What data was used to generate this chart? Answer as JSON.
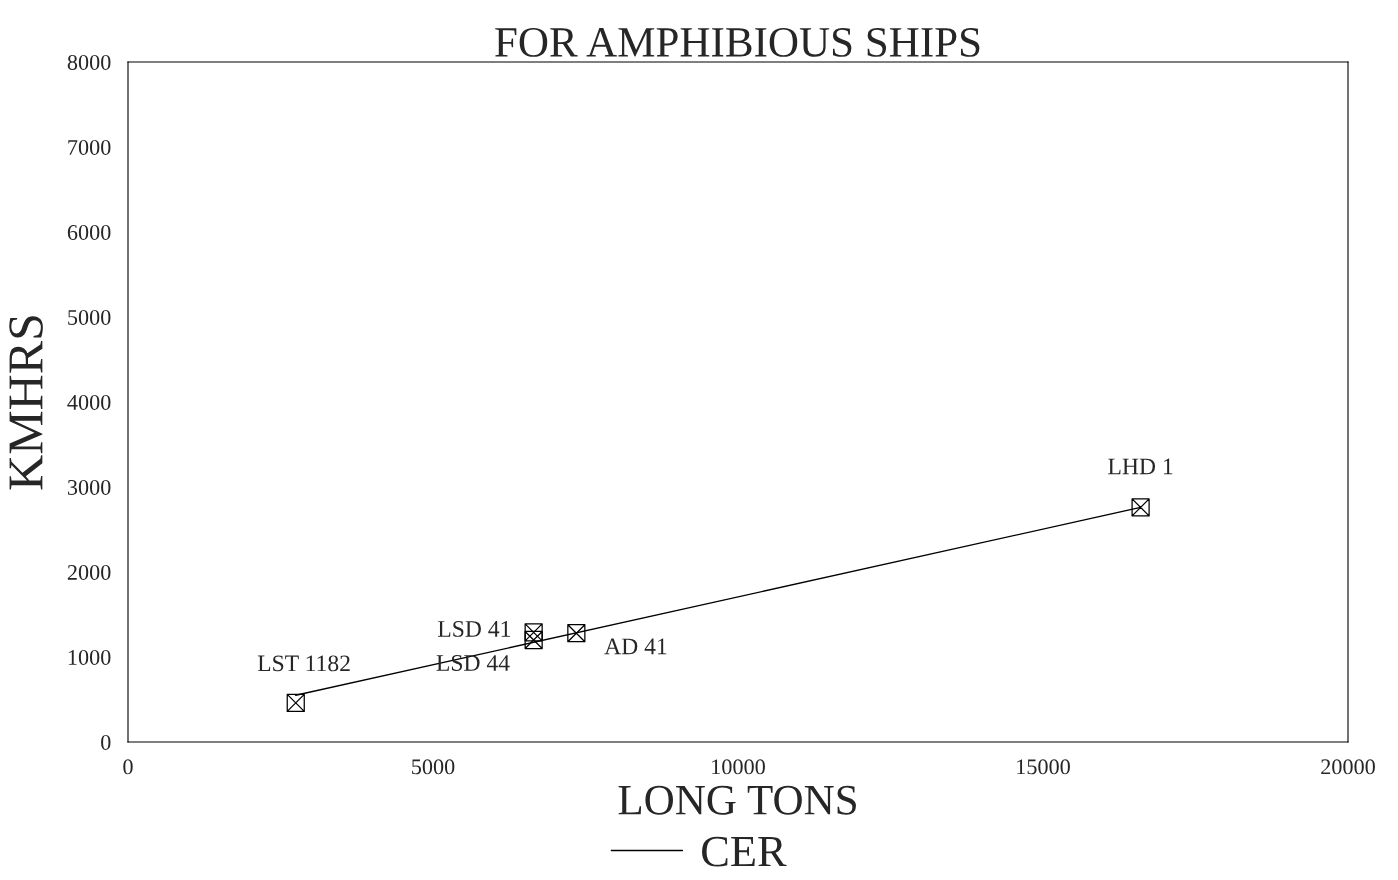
{
  "chart_data": {
    "type": "scatter",
    "title": "FOR AMPHIBIOUS SHIPS",
    "xlabel": "LONG TONS",
    "ylabel": "KMHRS",
    "series": [
      {
        "color": "#000000",
        "marker": "cross",
        "x": [
          2750,
          6650,
          6650,
          7350,
          16600
        ],
        "values": [
          460,
          1290,
          1200,
          1280,
          2760
        ]
      },
      {
        "type": "line",
        "name": "CER",
        "color": "#000000",
        "marker": "none",
        "line_style": "solid",
        "x": [
          2750,
          16600
        ],
        "values": [
          550,
          2760
        ]
      }
    ],
    "annotations": [
      {
        "text": "LST 1182",
        "x": 2750,
        "y": 460
      },
      {
        "text": "LSD 41",
        "x": 6650,
        "y": 1290
      },
      {
        "text": "LSD 44",
        "x": 6650,
        "y": 1200
      },
      {
        "text": "AD 41",
        "x": 7350,
        "y": 1280
      },
      {
        "text": "LHD 1",
        "x": 16600,
        "y": 2760
      }
    ],
    "xlim": [
      0,
      20000
    ],
    "xticks": [
      0,
      5000,
      10000,
      15000,
      20000
    ],
    "ylim": [
      0,
      8000
    ],
    "yticks": [
      0,
      1000,
      2000,
      3000,
      4000,
      5000,
      6000,
      7000,
      8000
    ],
    "grid": false,
    "legend": "bottom"
  }
}
